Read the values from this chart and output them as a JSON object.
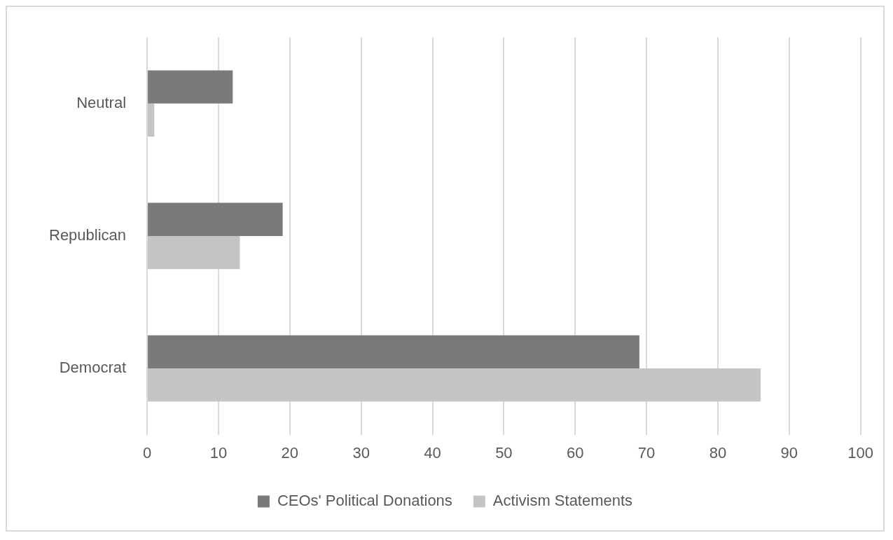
{
  "chart_data": {
    "type": "bar",
    "orientation": "horizontal",
    "categories": [
      "Neutral",
      "Republican",
      "Democrat"
    ],
    "series": [
      {
        "name": "CEOs' Political Donations",
        "color": "#7a7a7a",
        "values": [
          12,
          19,
          69
        ]
      },
      {
        "name": "Activism Statements",
        "color": "#c4c4c4",
        "values": [
          1,
          13,
          86
        ]
      }
    ],
    "xlim": [
      0,
      100
    ],
    "xticks": [
      0,
      10,
      20,
      30,
      40,
      50,
      60,
      70,
      80,
      90,
      100
    ],
    "grid": "x",
    "legend": "bottom"
  }
}
